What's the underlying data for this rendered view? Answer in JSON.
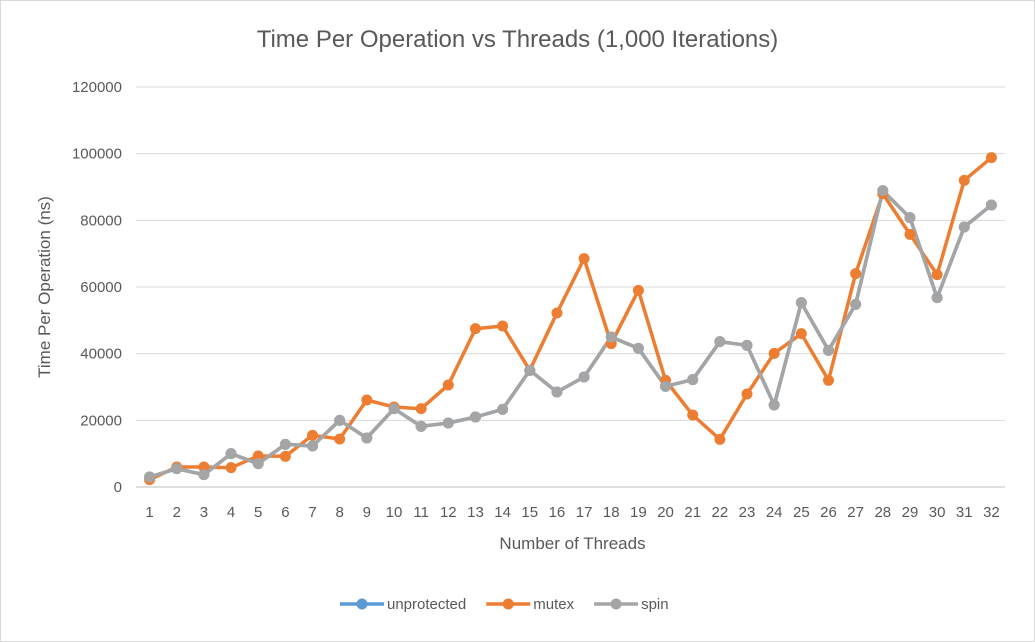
{
  "chart_data": {
    "type": "line",
    "title": "Time Per Operation vs Threads (1,000 Iterations)",
    "xlabel": "Number of Threads",
    "ylabel": "Time Per Operation (ns)",
    "ylim": [
      0,
      120000
    ],
    "yticks": [
      0,
      20000,
      40000,
      60000,
      80000,
      100000,
      120000
    ],
    "x": [
      1,
      2,
      3,
      4,
      5,
      6,
      7,
      8,
      9,
      10,
      11,
      12,
      13,
      14,
      15,
      16,
      17,
      18,
      19,
      20,
      21,
      22,
      23,
      24,
      25,
      26,
      27,
      28,
      29,
      30,
      31,
      32
    ],
    "grid": true,
    "legend_position": "bottom",
    "series": [
      {
        "name": "unprotected",
        "color": "#5b9bd5",
        "values": [
          3000,
          5500,
          3700,
          10000,
          7000,
          12800,
          12300,
          20000,
          14700,
          23500,
          18200,
          19200,
          21000,
          23300,
          35000,
          28500,
          33000,
          45000,
          41600,
          30200,
          32200,
          43600,
          42500,
          24600,
          55300,
          41000,
          54800,
          88900,
          80800,
          56800,
          78000,
          84600
        ]
      },
      {
        "name": "mutex",
        "color": "#ed7d31",
        "values": [
          2200,
          6000,
          6000,
          5800,
          9300,
          9200,
          15500,
          14400,
          26100,
          24000,
          23500,
          30600,
          47500,
          48300,
          35000,
          52200,
          68500,
          43000,
          59000,
          32000,
          21600,
          14300,
          27900,
          40100,
          46000,
          32000,
          64000,
          88000,
          75800,
          63700,
          92000,
          98800
        ]
      },
      {
        "name": "spin",
        "color": "#a5a5a5",
        "values": [
          3000,
          5500,
          3700,
          10000,
          7000,
          12800,
          12300,
          20000,
          14700,
          23500,
          18200,
          19200,
          21000,
          23300,
          35000,
          28500,
          33000,
          45000,
          41600,
          30200,
          32200,
          43600,
          42500,
          24600,
          55300,
          41000,
          54800,
          88900,
          80800,
          56800,
          78000,
          84600
        ]
      }
    ]
  }
}
